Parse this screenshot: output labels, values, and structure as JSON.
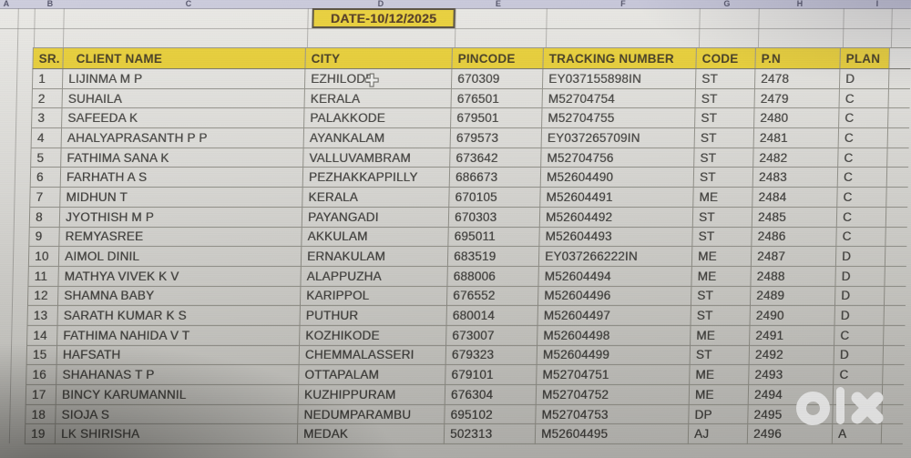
{
  "sheet": {
    "column_letters": [
      "A",
      "B",
      "C",
      "D",
      "E",
      "F",
      "G",
      "H",
      "I"
    ],
    "date_banner": "DATE-10/12/2025",
    "table": {
      "headers": [
        "SR.",
        "CLIENT NAME",
        "CITY",
        "PINCODE",
        "TRACKING NUMBER",
        "CODE",
        "P.N",
        "PLAN"
      ],
      "rows": [
        [
          "1",
          "LIJINMA M P",
          "EZHILODE",
          "670309",
          "EY037155898IN",
          "ST",
          "2478",
          "D"
        ],
        [
          "2",
          "SUHAILA",
          "KERALA",
          "676501",
          "M52704754",
          "ST",
          "2479",
          "C"
        ],
        [
          "3",
          "SAFEEDA K",
          "PALAKKODE",
          "679501",
          "M52704755",
          "ST",
          "2480",
          "C"
        ],
        [
          "4",
          "AHALYAPRASANTH P P",
          "AYANKALAM",
          "679573",
          "EY037265709IN",
          "ST",
          "2481",
          "C"
        ],
        [
          "5",
          "FATHIMA SANA K",
          "VALLUVAMBRAM",
          "673642",
          "M52704756",
          "ST",
          "2482",
          "C"
        ],
        [
          "6",
          "FARHATH A S",
          "PEZHAKKAPPILLY",
          "686673",
          "M52604490",
          "ST",
          "2483",
          "C"
        ],
        [
          "7",
          "MIDHUN T",
          "KERALA",
          "670105",
          "M52604491",
          "ME",
          "2484",
          "C"
        ],
        [
          "8",
          "JYOTHISH M P",
          "PAYANGADI",
          "670303",
          "M52604492",
          "ST",
          "2485",
          "C"
        ],
        [
          "9",
          "REMYASREE",
          "AKKULAM",
          "695011",
          "M52604493",
          "ST",
          "2486",
          "C"
        ],
        [
          "10",
          "AIMOL DINIL",
          "ERNAKULAM",
          "683519",
          "EY037266222IN",
          "ME",
          "2487",
          "D"
        ],
        [
          "11",
          "MATHYA VIVEK K V",
          "ALAPPUZHA",
          "688006",
          "M52604494",
          "ME",
          "2488",
          "D"
        ],
        [
          "12",
          "SHAMNA BABY",
          "KARIPPOL",
          "676552",
          "M52604496",
          "ST",
          "2489",
          "D"
        ],
        [
          "13",
          "SARATH KUMAR K S",
          "PUTHUR",
          "680014",
          "M52604497",
          "ST",
          "2490",
          "D"
        ],
        [
          "14",
          "FATHIMA NAHIDA V T",
          "KOZHIKODE",
          "673007",
          "M52604498",
          "ME",
          "2491",
          "C"
        ],
        [
          "15",
          "HAFSATH",
          "CHEMMALASSERI",
          "679323",
          "M52604499",
          "ST",
          "2492",
          "D"
        ],
        [
          "16",
          "SHAHANAS T P",
          "OTTAPALAM",
          "679101",
          "M52704751",
          "ME",
          "2493",
          "C"
        ],
        [
          "17",
          "BINCY KARUMANNIL",
          "KUZHIPPURAM",
          "676304",
          "M52704752",
          "ME",
          "2494",
          ""
        ],
        [
          "18",
          "SIOJA S",
          "NEDUMPARAMBU",
          "695102",
          "M52704753",
          "DP",
          "2495",
          ""
        ],
        [
          "19",
          "LK SHIRISHA",
          "MEDAK",
          "502313",
          "M52604495",
          "AJ",
          "2496",
          "A"
        ]
      ]
    }
  },
  "watermark": {
    "brand": "olx"
  },
  "cursor": {
    "type": "excel-cell-cursor"
  },
  "colors": {
    "header_yellow": "#e8cd2d",
    "date_text": "#4a3014",
    "grid_line": "#8f8e86",
    "watermark_white": "#fbfbfb"
  }
}
